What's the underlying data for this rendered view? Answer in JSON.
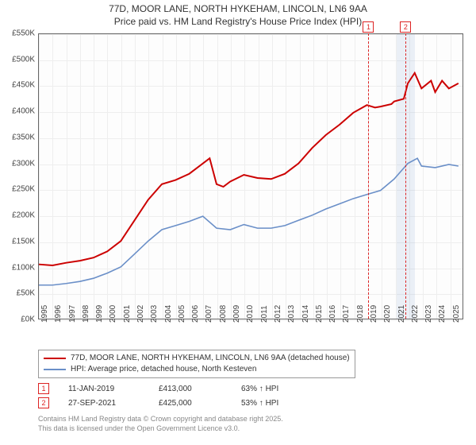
{
  "title_line1": "77D, MOOR LANE, NORTH HYKEHAM, LINCOLN, LN6 9AA",
  "title_line2": "Price paid vs. HM Land Registry's House Price Index (HPI)",
  "chart": {
    "type": "line",
    "background_color": "#fdfdfd",
    "grid_color": "#eeeeee",
    "border_color": "#666666",
    "xlim": [
      1995,
      2026
    ],
    "ylim": [
      0,
      550
    ],
    "ytick_step": 50,
    "ytick_prefix": "£",
    "ytick_suffix": "K",
    "xticks": [
      1995,
      1996,
      1997,
      1998,
      1999,
      2000,
      2001,
      2002,
      2003,
      2004,
      2005,
      2006,
      2007,
      2008,
      2009,
      2010,
      2011,
      2012,
      2013,
      2014,
      2015,
      2016,
      2017,
      2018,
      2019,
      2020,
      2021,
      2022,
      2023,
      2024,
      2025
    ],
    "series": [
      {
        "name": "price_paid",
        "color": "#cc0000",
        "width": 2,
        "data": [
          [
            1995,
            105
          ],
          [
            1996,
            103
          ],
          [
            1997,
            108
          ],
          [
            1998,
            112
          ],
          [
            1999,
            118
          ],
          [
            2000,
            130
          ],
          [
            2001,
            150
          ],
          [
            2002,
            190
          ],
          [
            2003,
            230
          ],
          [
            2004,
            260
          ],
          [
            2005,
            268
          ],
          [
            2006,
            280
          ],
          [
            2007,
            300
          ],
          [
            2007.5,
            310
          ],
          [
            2008,
            260
          ],
          [
            2008.5,
            255
          ],
          [
            2009,
            265
          ],
          [
            2010,
            278
          ],
          [
            2011,
            272
          ],
          [
            2012,
            270
          ],
          [
            2013,
            280
          ],
          [
            2014,
            300
          ],
          [
            2015,
            330
          ],
          [
            2016,
            355
          ],
          [
            2017,
            375
          ],
          [
            2018,
            398
          ],
          [
            2019,
            413
          ],
          [
            2019.6,
            408
          ],
          [
            2020,
            410
          ],
          [
            2020.8,
            415
          ],
          [
            2021,
            420
          ],
          [
            2021.7,
            425
          ],
          [
            2022,
            455
          ],
          [
            2022.5,
            475
          ],
          [
            2023,
            445
          ],
          [
            2023.7,
            460
          ],
          [
            2024,
            438
          ],
          [
            2024.5,
            460
          ],
          [
            2025,
            445
          ],
          [
            2025.7,
            455
          ]
        ]
      },
      {
        "name": "hpi",
        "color": "#6a8fc8",
        "width": 1.6,
        "data": [
          [
            1995,
            65
          ],
          [
            1996,
            65
          ],
          [
            1997,
            68
          ],
          [
            1998,
            72
          ],
          [
            1999,
            78
          ],
          [
            2000,
            88
          ],
          [
            2001,
            100
          ],
          [
            2002,
            125
          ],
          [
            2003,
            150
          ],
          [
            2004,
            172
          ],
          [
            2005,
            180
          ],
          [
            2006,
            188
          ],
          [
            2007,
            198
          ],
          [
            2008,
            175
          ],
          [
            2009,
            172
          ],
          [
            2010,
            182
          ],
          [
            2011,
            175
          ],
          [
            2012,
            175
          ],
          [
            2013,
            180
          ],
          [
            2014,
            190
          ],
          [
            2015,
            200
          ],
          [
            2016,
            212
          ],
          [
            2017,
            222
          ],
          [
            2018,
            232
          ],
          [
            2019,
            240
          ],
          [
            2020,
            248
          ],
          [
            2021,
            270
          ],
          [
            2022,
            300
          ],
          [
            2022.7,
            310
          ],
          [
            2023,
            295
          ],
          [
            2024,
            292
          ],
          [
            2025,
            298
          ],
          [
            2025.7,
            295
          ]
        ]
      }
    ],
    "markers": [
      {
        "n": "1",
        "x": 2019.03,
        "band": false
      },
      {
        "n": "2",
        "x": 2021.74,
        "band": true,
        "band_start": 2021.1,
        "band_end": 2022.4
      }
    ]
  },
  "legend": {
    "items": [
      {
        "color": "#cc0000",
        "label": "77D, MOOR LANE, NORTH HYKEHAM, LINCOLN, LN6 9AA (detached house)"
      },
      {
        "color": "#6a8fc8",
        "label": "HPI: Average price, detached house, North Kesteven"
      }
    ]
  },
  "marker_info": [
    {
      "n": "1",
      "date": "11-JAN-2019",
      "price": "£413,000",
      "delta": "63% ↑ HPI"
    },
    {
      "n": "2",
      "date": "27-SEP-2021",
      "price": "£425,000",
      "delta": "53% ↑ HPI"
    }
  ],
  "footnote_line1": "Contains HM Land Registry data © Crown copyright and database right 2025.",
  "footnote_line2": "This data is licensed under the Open Government Licence v3.0."
}
